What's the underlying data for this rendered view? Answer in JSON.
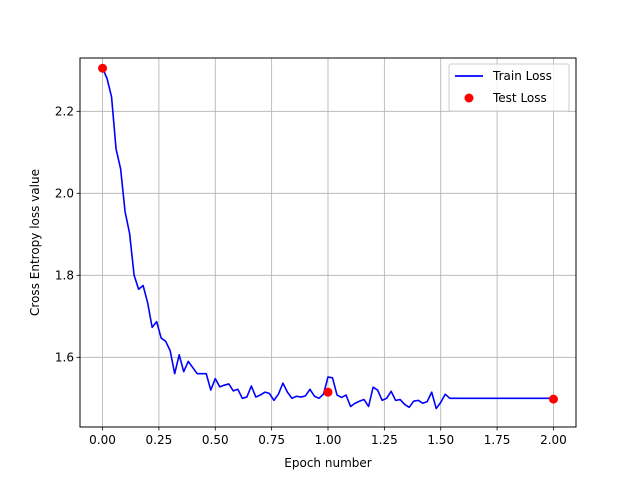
{
  "chart_data": {
    "type": "line",
    "xlabel": "Epoch number",
    "ylabel": "Cross Entropy loss value",
    "xlim": [
      -0.1,
      2.1
    ],
    "ylim": [
      1.43,
      2.33
    ],
    "xticks": [
      0.0,
      0.25,
      0.5,
      0.75,
      1.0,
      1.25,
      1.5,
      1.75,
      2.0
    ],
    "xtick_labels": [
      "0.00",
      "0.25",
      "0.50",
      "0.75",
      "1.00",
      "1.25",
      "1.50",
      "1.75",
      "2.00"
    ],
    "yticks": [
      1.6,
      1.8,
      2.0,
      2.2
    ],
    "ytick_labels": [
      "1.6",
      "1.8",
      "2.0",
      "2.2"
    ],
    "grid": true,
    "legend_position": "top-right",
    "series": [
      {
        "name": "Train Loss",
        "kind": "line",
        "color": "#0000ff",
        "x": [
          0.0,
          0.02,
          0.04,
          0.06,
          0.08,
          0.1,
          0.12,
          0.14,
          0.16,
          0.18,
          0.2,
          0.22,
          0.24,
          0.26,
          0.28,
          0.3,
          0.32,
          0.34,
          0.36,
          0.38,
          0.4,
          0.42,
          0.44,
          0.46,
          0.48,
          0.5,
          0.52,
          0.54,
          0.56,
          0.58,
          0.6,
          0.62,
          0.64,
          0.66,
          0.68,
          0.7,
          0.72,
          0.74,
          0.76,
          0.78,
          0.8,
          0.82,
          0.84,
          0.86,
          0.88,
          0.9,
          0.92,
          0.94,
          0.96,
          0.98,
          1.0,
          1.02,
          1.04,
          1.06,
          1.08,
          1.1,
          1.12,
          1.14,
          1.16,
          1.18,
          1.2,
          1.22,
          1.24,
          1.26,
          1.28,
          1.3,
          1.32,
          1.34,
          1.36,
          1.38,
          1.4,
          1.42,
          1.44,
          1.46,
          1.48,
          1.5,
          1.52,
          1.54,
          1.56,
          1.58,
          1.6,
          1.62,
          1.64,
          1.66,
          1.68,
          1.7,
          1.72,
          1.74,
          1.76,
          1.78,
          1.8,
          1.82,
          1.84,
          1.86,
          1.88,
          1.9,
          1.92,
          1.94,
          1.96,
          1.98,
          2.0
        ],
        "values": [
          2.305,
          2.28,
          2.235,
          2.108,
          2.06,
          1.955,
          1.902,
          1.8,
          1.766,
          1.775,
          1.733,
          1.673,
          1.687,
          1.647,
          1.639,
          1.616,
          1.56,
          1.606,
          1.565,
          1.59,
          1.575,
          1.56,
          1.56,
          1.56,
          1.52,
          1.548,
          1.528,
          1.532,
          1.535,
          1.518,
          1.522,
          1.5,
          1.503,
          1.53,
          1.503,
          1.508,
          1.515,
          1.512,
          1.495,
          1.51,
          1.537,
          1.515,
          1.5,
          1.505,
          1.503,
          1.506,
          1.522,
          1.505,
          1.5,
          1.51,
          1.552,
          1.55,
          1.508,
          1.502,
          1.508,
          1.48,
          1.488,
          1.493,
          1.497,
          1.48,
          1.527,
          1.52,
          1.495,
          1.5,
          1.517,
          1.495,
          1.497,
          1.485,
          1.478,
          1.493,
          1.495,
          1.488,
          1.492,
          1.515,
          1.475,
          1.49,
          1.51,
          1.5,
          1.5,
          1.5,
          1.5,
          1.5,
          1.5,
          1.5,
          1.5,
          1.5,
          1.5,
          1.5,
          1.5,
          1.5,
          1.5,
          1.5,
          1.5,
          1.5,
          1.5,
          1.5,
          1.5,
          1.5,
          1.5,
          1.5,
          1.5
        ]
      },
      {
        "name": "Test Loss",
        "kind": "scatter",
        "color": "#ff0000",
        "x": [
          0.0,
          1.0,
          2.0
        ],
        "values": [
          2.305,
          1.515,
          1.498
        ]
      }
    ]
  }
}
